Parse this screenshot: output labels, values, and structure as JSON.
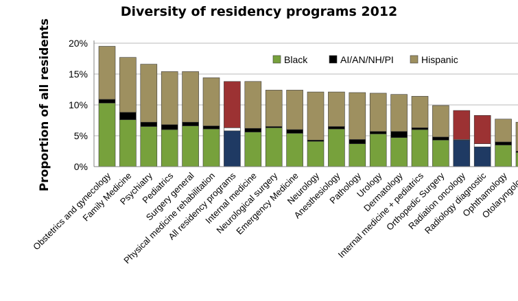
{
  "chart_data": {
    "type": "bar",
    "stacked": true,
    "title": "Diversity of residency programs 2012",
    "xlabel": "",
    "ylabel": "Proportion of all residents",
    "ylim": [
      0,
      20
    ],
    "yticks": [
      "0%",
      "5%",
      "10%",
      "15%",
      "20%"
    ],
    "grid": true,
    "legend_position": "top-right",
    "categories": [
      "Obstetrics and gynecology",
      "Family Medicine",
      "Psychiatry",
      "Pediatrics",
      "Surgery general",
      "Physical medicine rehabilitation",
      "All residency programs",
      "Internal medicine",
      "Neurological surgery",
      "Emergency Medicine",
      "Neurology",
      "Anesthesiology",
      "Pathology",
      "Urology",
      "Dermatology",
      "Internal medicine + pediatrics",
      "Orthopedic Surgery",
      "Radiation oncology",
      "Radiology diagnostic",
      "Ophthamology",
      "Otolaryngology"
    ],
    "series": [
      {
        "name": "Black",
        "values": [
          10.3,
          7.6,
          6.5,
          6.0,
          6.6,
          6.1,
          5.8,
          5.6,
          6.3,
          5.4,
          4.1,
          6.1,
          3.7,
          5.3,
          4.7,
          6.0,
          4.3,
          4.3,
          3.2,
          3.5,
          2.3
        ]
      },
      {
        "name": "AI/AN/NH/PI",
        "values": [
          0.6,
          1.2,
          0.7,
          0.8,
          0.6,
          0.5,
          0.5,
          0.6,
          0.2,
          0.6,
          0.2,
          0.4,
          0.7,
          0.4,
          1.0,
          0.3,
          0.5,
          0.1,
          0.5,
          0.5,
          0.2
        ]
      },
      {
        "name": "Hispanic",
        "values": [
          8.6,
          8.9,
          9.4,
          8.6,
          8.2,
          7.8,
          7.5,
          7.6,
          5.9,
          6.4,
          7.8,
          5.6,
          7.6,
          6.2,
          6.0,
          5.1,
          5.1,
          4.7,
          4.6,
          3.7,
          4.7
        ]
      }
    ],
    "highlighted_categories": [
      "All residency programs",
      "Radiation oncology",
      "Radiology diagnostic"
    ],
    "colors": {
      "black": "#77a13c",
      "ai_an": "#000000",
      "hispanic": "#9e9060",
      "black_highlight": "#1f3a63",
      "hispanic_highlight": "#9c3233",
      "bar_outline": "#ffffff",
      "grid": "#b8b8b8"
    }
  }
}
